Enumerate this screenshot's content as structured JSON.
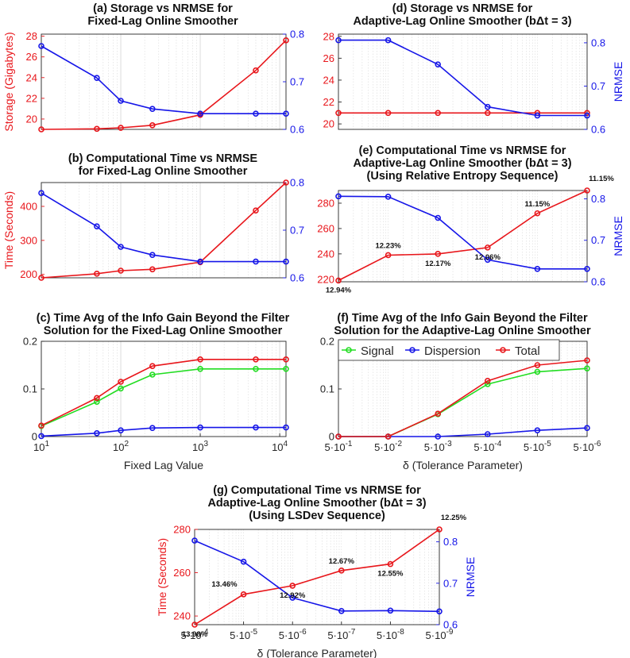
{
  "figure": {
    "legend": {
      "signal": "Signal",
      "dispersion": "Dispersion",
      "total": "Total"
    }
  },
  "colors": {
    "red": "#e8161b",
    "blue": "#1616e8",
    "green": "#22dd22",
    "axis": "#262626",
    "grid": "#d9d9d9"
  },
  "chart_data": [
    {
      "id": "a",
      "type": "line",
      "title": [
        "(a) Storage vs NRMSE for",
        "Fixed-Lag Online Smoother"
      ],
      "xscale": "log",
      "xlim": [
        10,
        12000
      ],
      "yleft": {
        "label": "Storage (Gigabytes)",
        "lim": [
          19,
          28.2
        ],
        "ticks": [
          20,
          22,
          24,
          26,
          28
        ]
      },
      "yright": {
        "label": "",
        "lim": [
          0.6,
          0.8
        ],
        "ticks": [
          0.6,
          0.7,
          0.8
        ],
        "tick_labels": [
          "0.6",
          "0.7",
          "0.8"
        ]
      },
      "series": [
        {
          "name": "Storage",
          "axis": "left",
          "color": "red",
          "x": [
            10,
            50,
            100,
            250,
            1000,
            5000,
            12000
          ],
          "y": [
            19.0,
            19.05,
            19.15,
            19.4,
            20.4,
            24.7,
            27.6
          ]
        },
        {
          "name": "NRMSE",
          "axis": "right",
          "color": "blue",
          "x": [
            10,
            50,
            100,
            250,
            1000,
            5000,
            12000
          ],
          "y": [
            0.775,
            0.708,
            0.66,
            0.643,
            0.633,
            0.633,
            0.633
          ]
        }
      ]
    },
    {
      "id": "b",
      "type": "line",
      "title": [
        "(b) Computational Time vs NRMSE",
        "for Fixed-Lag Online Smoother"
      ],
      "xscale": "log",
      "xlim": [
        10,
        12000
      ],
      "yleft": {
        "label": "Time (Seconds)",
        "lim": [
          190,
          470
        ],
        "ticks": [
          200,
          300,
          400
        ]
      },
      "yright": {
        "label": "",
        "lim": [
          0.6,
          0.8
        ],
        "ticks": [
          0.6,
          0.7,
          0.8
        ],
        "tick_labels": [
          "0.6",
          "0.7",
          "0.8"
        ]
      },
      "series": [
        {
          "name": "Time",
          "axis": "left",
          "color": "red",
          "x": [
            10,
            50,
            100,
            250,
            1000,
            5000,
            12000
          ],
          "y": [
            190,
            202,
            211,
            215,
            236,
            388,
            470
          ]
        },
        {
          "name": "NRMSE",
          "axis": "right",
          "color": "blue",
          "x": [
            10,
            50,
            100,
            250,
            1000,
            5000,
            12000
          ],
          "y": [
            0.778,
            0.708,
            0.665,
            0.648,
            0.634,
            0.634,
            0.634
          ]
        }
      ]
    },
    {
      "id": "c",
      "type": "line",
      "title": [
        "(c) Time Avg of the Info Gain Beyond the Filter",
        "Solution for the Fixed-Lag Online Smoother"
      ],
      "xscale": "log",
      "xlim": [
        10,
        12000
      ],
      "xlabel": "Fixed Lag Value",
      "xticks": [
        {
          "v": 10,
          "b": "10",
          "e": "1"
        },
        {
          "v": 100,
          "b": "10",
          "e": "2"
        },
        {
          "v": 1000,
          "b": "10",
          "e": "3"
        },
        {
          "v": 10000,
          "b": "10",
          "e": "4"
        }
      ],
      "yleft": {
        "label": "",
        "lim": [
          0,
          0.2
        ],
        "ticks": [
          0,
          0.1,
          0.2
        ],
        "tick_labels": [
          "0",
          "0.1",
          "0.2"
        ]
      },
      "series": [
        {
          "name": "Signal",
          "axis": "left",
          "color": "green",
          "x": [
            10,
            50,
            100,
            250,
            1000,
            5000,
            12000
          ],
          "y": [
            0.022,
            0.073,
            0.101,
            0.13,
            0.142,
            0.142,
            0.142
          ]
        },
        {
          "name": "Dispersion",
          "axis": "left",
          "color": "blue",
          "x": [
            10,
            50,
            100,
            250,
            1000,
            5000,
            12000
          ],
          "y": [
            0.001,
            0.007,
            0.013,
            0.018,
            0.019,
            0.019,
            0.019
          ]
        },
        {
          "name": "Total",
          "axis": "left",
          "color": "red",
          "x": [
            10,
            50,
            100,
            250,
            1000,
            5000,
            12000
          ],
          "y": [
            0.023,
            0.081,
            0.115,
            0.148,
            0.162,
            0.162,
            0.162
          ]
        }
      ]
    },
    {
      "id": "d",
      "type": "line",
      "title": [
        "(d) Storage vs NRMSE for",
        "Adaptive-Lag Online Smoother (bΔt = 3)"
      ],
      "xscale": "cat",
      "npts": 6,
      "yleft": {
        "label": "",
        "lim": [
          19.5,
          28.2
        ],
        "ticks": [
          20,
          22,
          24,
          26,
          28
        ]
      },
      "yright": {
        "label": "NRMSE",
        "lim": [
          0.6,
          0.82
        ],
        "ticks": [
          0.6,
          0.7,
          0.8
        ],
        "tick_labels": [
          "0.6",
          "0.7",
          "0.8"
        ]
      },
      "series": [
        {
          "name": "Storage",
          "axis": "left",
          "color": "red",
          "x": [
            0,
            1,
            2,
            3,
            4,
            5
          ],
          "y": [
            21.0,
            21.0,
            21.0,
            21.0,
            21.0,
            21.0
          ]
        },
        {
          "name": "NRMSE",
          "axis": "right",
          "color": "blue",
          "x": [
            0,
            1,
            2,
            3,
            4,
            5
          ],
          "y": [
            0.806,
            0.806,
            0.75,
            0.652,
            0.632,
            0.632
          ]
        }
      ]
    },
    {
      "id": "e",
      "type": "line",
      "title": [
        "(e) Computational Time vs NRMSE for",
        "Adaptive-Lag Online Smoother (bΔt = 3)",
        "(Using Relative Entropy Sequence)"
      ],
      "xscale": "cat",
      "npts": 6,
      "yleft": {
        "label": "",
        "lim": [
          218,
          290
        ],
        "ticks": [
          220,
          240,
          260,
          280
        ]
      },
      "yright": {
        "label": "NRMSE",
        "lim": [
          0.6,
          0.82
        ],
        "ticks": [
          0.6,
          0.7,
          0.8
        ],
        "tick_labels": [
          "0.6",
          "0.7",
          "0.8"
        ]
      },
      "series": [
        {
          "name": "Time",
          "axis": "left",
          "color": "red",
          "x": [
            0,
            1,
            2,
            3,
            4,
            5
          ],
          "y": [
            219,
            239,
            240,
            245,
            272,
            290
          ]
        },
        {
          "name": "NRMSE",
          "axis": "right",
          "color": "blue",
          "x": [
            0,
            1,
            2,
            3,
            4,
            5
          ],
          "y": [
            0.806,
            0.805,
            0.754,
            0.653,
            0.631,
            0.631
          ]
        }
      ],
      "annotations": [
        {
          "text": "12.94%",
          "x": 0,
          "y": 219,
          "pos": "below"
        },
        {
          "text": "12.23%",
          "x": 1,
          "y": 239,
          "pos": "above"
        },
        {
          "text": "12.17%",
          "x": 2,
          "y": 240,
          "pos": "below"
        },
        {
          "text": "12.06%",
          "x": 3,
          "y": 245,
          "pos": "below"
        },
        {
          "text": "11.15%",
          "x": 4,
          "y": 272,
          "pos": "above"
        },
        {
          "text": "11.15%",
          "x": 5,
          "y": 290,
          "pos": "above"
        }
      ]
    },
    {
      "id": "f",
      "type": "line",
      "title": [
        "(f) Time Avg of the Info Gain Beyond the Filter",
        "Solution for the Adaptive-Lag Online Smoother"
      ],
      "xscale": "cat",
      "npts": 6,
      "xlabel": "δ (Tolerance Parameter)",
      "xticks": [
        {
          "v": 0,
          "b": "5·10",
          "e": "-1"
        },
        {
          "v": 1,
          "b": "5·10",
          "e": "-2"
        },
        {
          "v": 2,
          "b": "5·10",
          "e": "-3"
        },
        {
          "v": 3,
          "b": "5·10",
          "e": "-4"
        },
        {
          "v": 4,
          "b": "5·10",
          "e": "-5"
        },
        {
          "v": 5,
          "b": "5·10",
          "e": "-6"
        }
      ],
      "yleft": {
        "label": "",
        "lim": [
          0,
          0.2
        ],
        "ticks": [
          0,
          0.1,
          0.2
        ],
        "tick_labels": [
          "0",
          "0.1",
          "0.2"
        ]
      },
      "legend": true,
      "series": [
        {
          "name": "Signal",
          "axis": "left",
          "color": "green",
          "x": [
            0,
            1,
            2,
            3,
            4,
            5
          ],
          "y": [
            0.0,
            0.0,
            0.047,
            0.11,
            0.136,
            0.143
          ]
        },
        {
          "name": "Dispersion",
          "axis": "left",
          "color": "blue",
          "x": [
            0,
            1,
            2,
            3,
            4,
            5
          ],
          "y": [
            0.0,
            0.0,
            0.0,
            0.005,
            0.013,
            0.018
          ]
        },
        {
          "name": "Total",
          "axis": "left",
          "color": "red",
          "x": [
            0,
            1,
            2,
            3,
            4,
            5
          ],
          "y": [
            0.0,
            0.0,
            0.048,
            0.117,
            0.15,
            0.16
          ]
        }
      ]
    },
    {
      "id": "g",
      "type": "line",
      "title": [
        "(g) Computational Time vs NRMSE for",
        "Adaptive-Lag Online Smoother (bΔt = 3)",
        "(Using LSDev Sequence)"
      ],
      "xscale": "cat",
      "npts": 6,
      "xlabel": "δ (Tolerance Parameter)",
      "xticks": [
        {
          "v": 0,
          "b": "5·10",
          "e": "-4"
        },
        {
          "v": 1,
          "b": "5·10",
          "e": "-5"
        },
        {
          "v": 2,
          "b": "5·10",
          "e": "-6"
        },
        {
          "v": 3,
          "b": "5·10",
          "e": "-7"
        },
        {
          "v": 4,
          "b": "5·10",
          "e": "-8"
        },
        {
          "v": 5,
          "b": "5·10",
          "e": "-9"
        }
      ],
      "yleft": {
        "label": "Time (Seconds)",
        "lim": [
          236,
          280
        ],
        "ticks": [
          240,
          260,
          280
        ]
      },
      "yright": {
        "label": "NRMSE",
        "lim": [
          0.6,
          0.83
        ],
        "ticks": [
          0.6,
          0.7,
          0.8
        ],
        "tick_labels": [
          "0.6",
          "0.7",
          "0.8"
        ]
      },
      "series": [
        {
          "name": "Time",
          "axis": "left",
          "color": "red",
          "x": [
            0,
            1,
            2,
            3,
            4,
            5
          ],
          "y": [
            236,
            250,
            254,
            261,
            264,
            280
          ]
        },
        {
          "name": "NRMSE",
          "axis": "right",
          "color": "blue",
          "x": [
            0,
            1,
            2,
            3,
            4,
            5
          ],
          "y": [
            0.803,
            0.752,
            0.665,
            0.633,
            0.634,
            0.632
          ]
        }
      ],
      "annotations": [
        {
          "text": "13.98%",
          "x": 0,
          "y": 236,
          "pos": "below"
        },
        {
          "text": "13.46%",
          "x": 1,
          "y": 250,
          "pos": "left"
        },
        {
          "text": "12.92%",
          "x": 2,
          "y": 254,
          "pos": "below"
        },
        {
          "text": "12.67%",
          "x": 3,
          "y": 261,
          "pos": "above"
        },
        {
          "text": "12.55%",
          "x": 4,
          "y": 264,
          "pos": "below"
        },
        {
          "text": "12.25%",
          "x": 5,
          "y": 280,
          "pos": "above"
        }
      ]
    }
  ]
}
